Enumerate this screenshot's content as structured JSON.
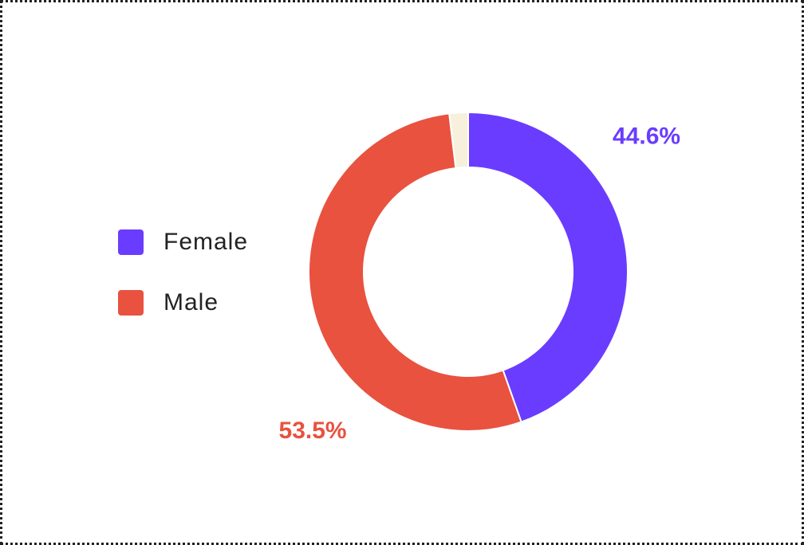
{
  "chart_data": {
    "type": "donut",
    "categories": [
      "Female",
      "Male",
      null
    ],
    "values": [
      44.6,
      53.5,
      1.9
    ],
    "value_labels": [
      "44.6%",
      "53.5%",
      null
    ],
    "colors": [
      "#6a3cff",
      "#e8523f",
      "#f6f0dc"
    ],
    "legend": "left"
  }
}
